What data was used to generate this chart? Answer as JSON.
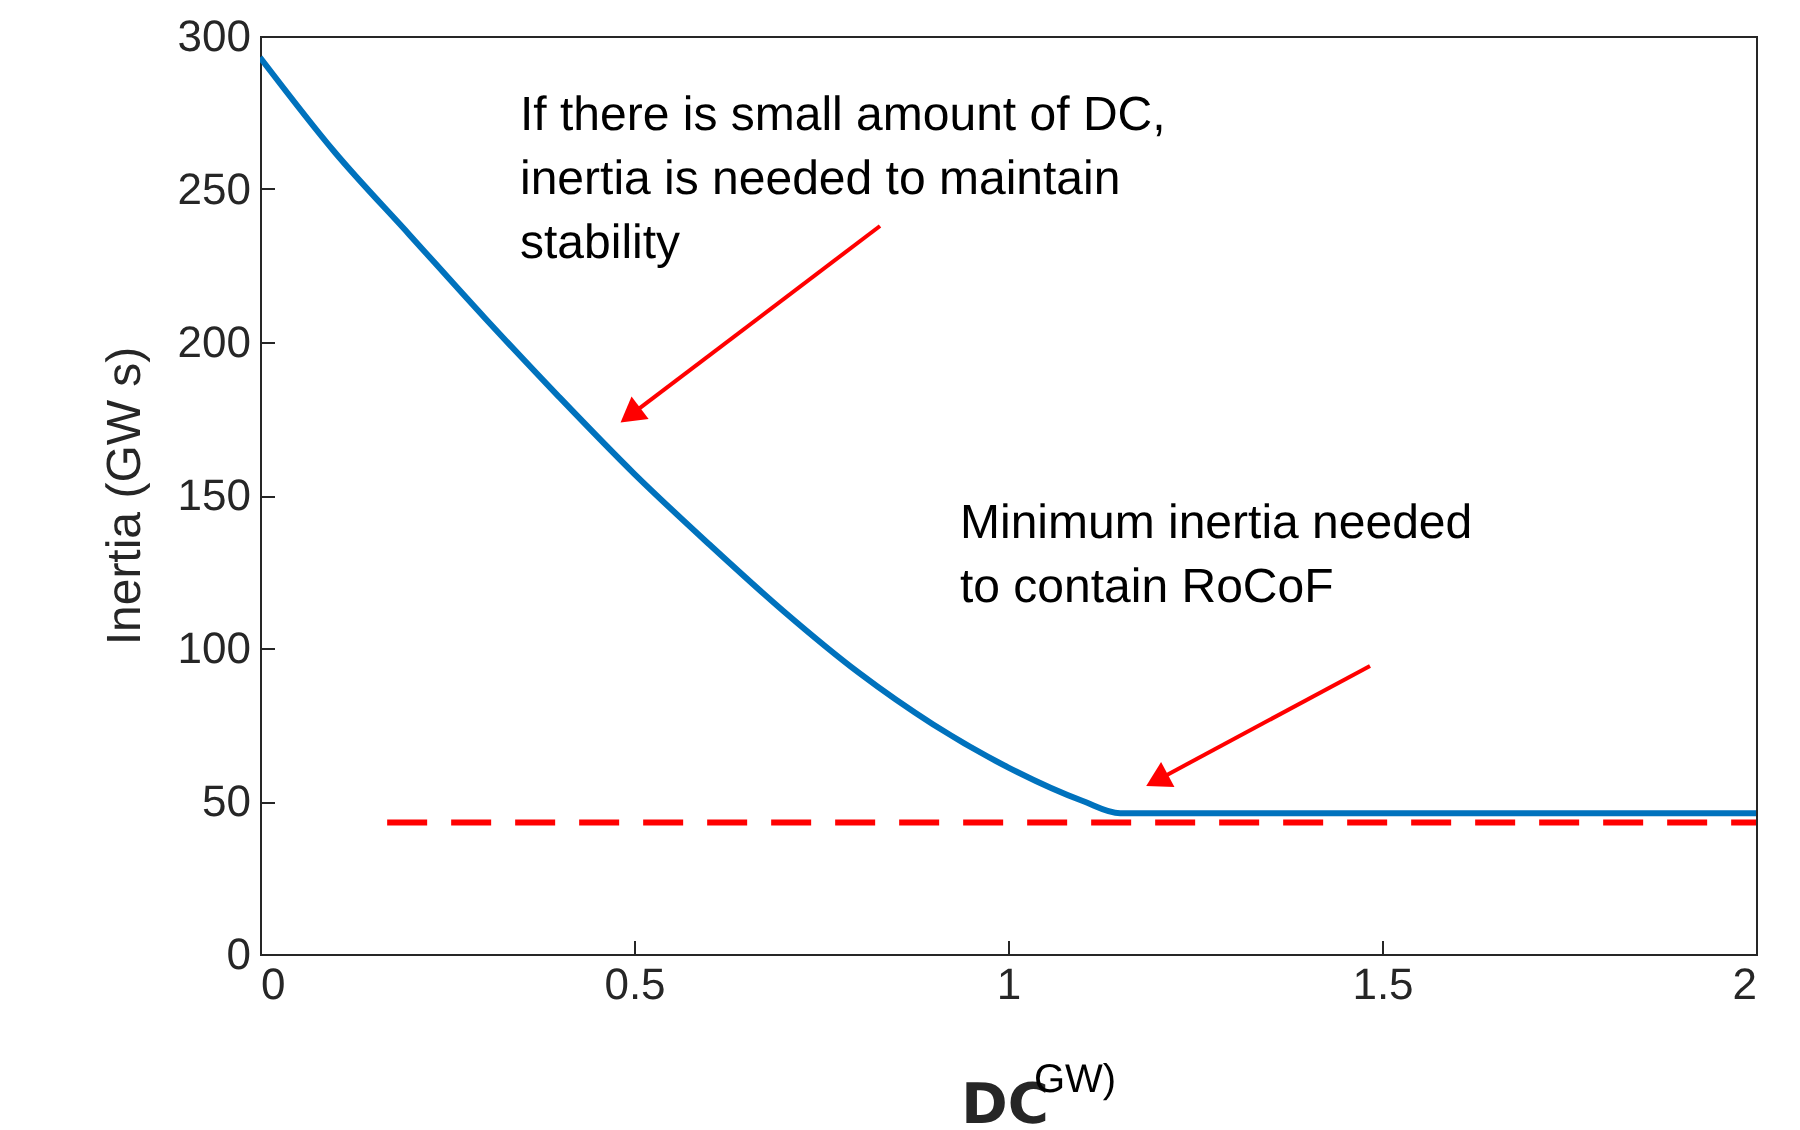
{
  "chart_data": {
    "type": "line",
    "xlabel": "DC",
    "ylabel": "Inertia (GW s)",
    "xlim": [
      0,
      2
    ],
    "xticks": [
      0,
      0.5,
      1,
      1.5,
      2
    ],
    "ylim": [
      0,
      300
    ],
    "yticks": [
      0,
      50,
      100,
      150,
      200,
      250,
      300
    ],
    "grid": false,
    "series": [
      {
        "color": "#0072bd",
        "line_style": "solid",
        "x": [
          0,
          0.1,
          0.2,
          0.3,
          0.4,
          0.5,
          0.6,
          0.7,
          0.8,
          0.9,
          1.0,
          1.1,
          1.15,
          1.5,
          2
        ],
        "values": [
          293,
          262,
          235,
          208,
          182,
          157,
          134,
          112,
          92,
          75,
          61,
          50,
          46,
          46,
          46
        ]
      },
      {
        "color": "#ff0000",
        "line_style": "dashed",
        "x": [
          0.17,
          2
        ],
        "values": [
          43,
          43
        ]
      }
    ],
    "annotations": [
      "If there is small amount of DC,\ninertia is needed to maintain\nstability",
      "Minimum inertia needed\nto contain RoCoF",
      "GW)"
    ]
  }
}
